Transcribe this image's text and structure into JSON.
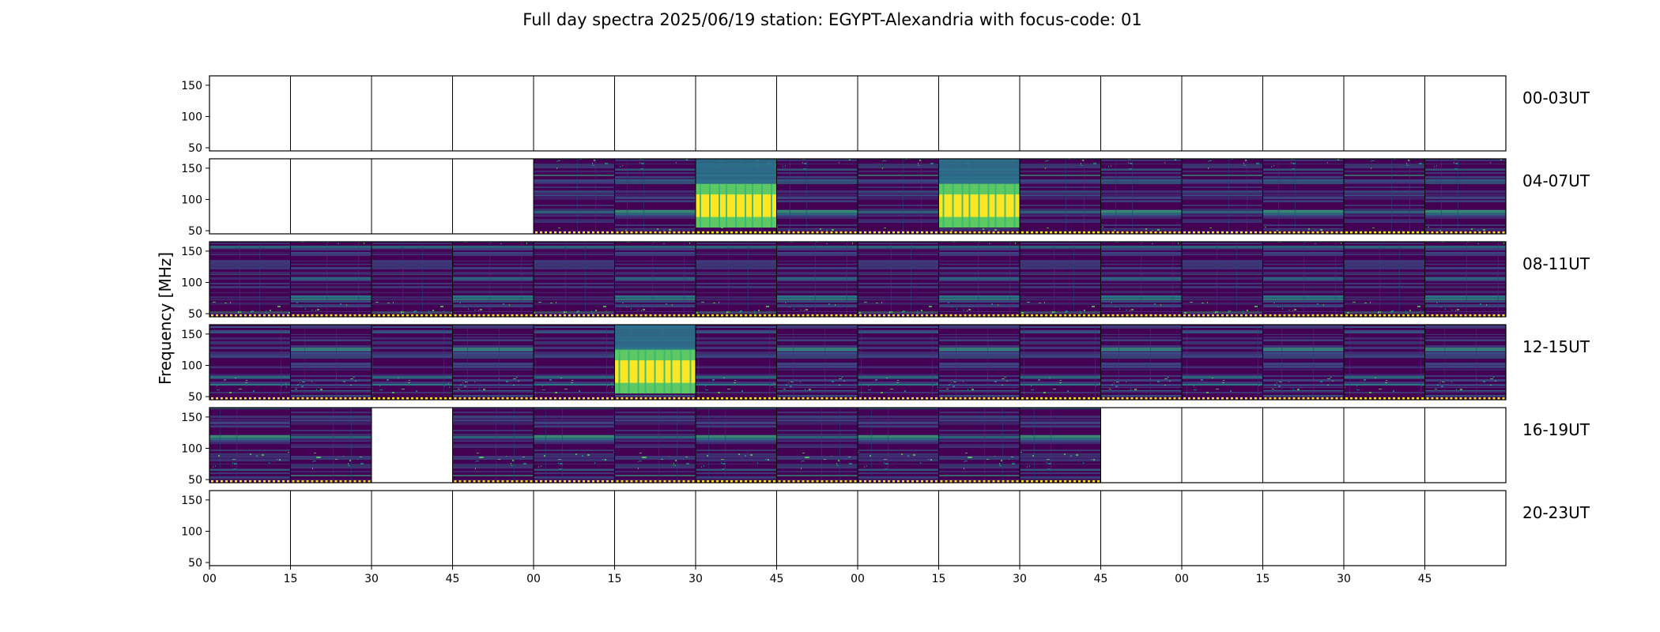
{
  "chart_data": {
    "type": "heatmap",
    "title": "Full day spectra 2025/06/19 station: EGYPT-Alexandria with focus-code: 01",
    "ylabel": "Frequency [MHz]",
    "xlabel": "",
    "ylim": [
      45,
      165
    ],
    "yticks": [
      50,
      100,
      150
    ],
    "xtick_labels": [
      "00",
      "15",
      "30",
      "45",
      "00",
      "15",
      "30",
      "45",
      "00",
      "15",
      "30",
      "45",
      "00",
      "15",
      "30",
      "45"
    ],
    "rows": [
      {
        "label": "00-03UT",
        "available": [
          0,
          0,
          0,
          0,
          0,
          0,
          0,
          0,
          0,
          0,
          0,
          0,
          0,
          0,
          0,
          0
        ],
        "burst": [
          0,
          0,
          0,
          0,
          0,
          0,
          0,
          0,
          0,
          0,
          0,
          0,
          0,
          0,
          0,
          0
        ]
      },
      {
        "label": "04-07UT",
        "available": [
          0,
          0,
          0,
          0,
          1,
          1,
          1,
          1,
          1,
          1,
          1,
          1,
          1,
          1,
          1,
          1
        ],
        "burst": [
          0,
          0,
          0,
          0,
          0,
          0,
          1,
          0,
          0,
          1,
          0,
          0,
          0,
          0,
          0,
          0
        ]
      },
      {
        "label": "08-11UT",
        "available": [
          1,
          1,
          1,
          1,
          1,
          1,
          1,
          1,
          1,
          1,
          1,
          1,
          1,
          1,
          1,
          1
        ],
        "burst": [
          0,
          0,
          0,
          0,
          0,
          0,
          0,
          0,
          0,
          0,
          0,
          0,
          0,
          0,
          0,
          0
        ]
      },
      {
        "label": "12-15UT",
        "available": [
          1,
          1,
          1,
          1,
          1,
          1,
          1,
          1,
          1,
          1,
          1,
          1,
          1,
          1,
          1,
          1
        ],
        "burst": [
          0,
          0,
          0,
          0,
          0,
          1,
          0,
          0,
          0,
          0,
          0,
          0,
          0,
          0,
          0,
          0
        ]
      },
      {
        "label": "16-19UT",
        "available": [
          1,
          1,
          0,
          1,
          1,
          1,
          1,
          1,
          1,
          1,
          1,
          0,
          0,
          0,
          0,
          0
        ],
        "burst": [
          0,
          0,
          0,
          0,
          0,
          0,
          0,
          0,
          0,
          0,
          0,
          0,
          0,
          0,
          0,
          0
        ]
      },
      {
        "label": "20-23UT",
        "available": [
          0,
          0,
          0,
          0,
          0,
          0,
          0,
          0,
          0,
          0,
          0,
          0,
          0,
          0,
          0,
          0
        ],
        "burst": [
          0,
          0,
          0,
          0,
          0,
          0,
          0,
          0,
          0,
          0,
          0,
          0,
          0,
          0,
          0,
          0
        ]
      }
    ],
    "colormap": [
      "#440154",
      "#3b528b",
      "#21918c",
      "#5ec962",
      "#fde725"
    ],
    "grid": false
  }
}
